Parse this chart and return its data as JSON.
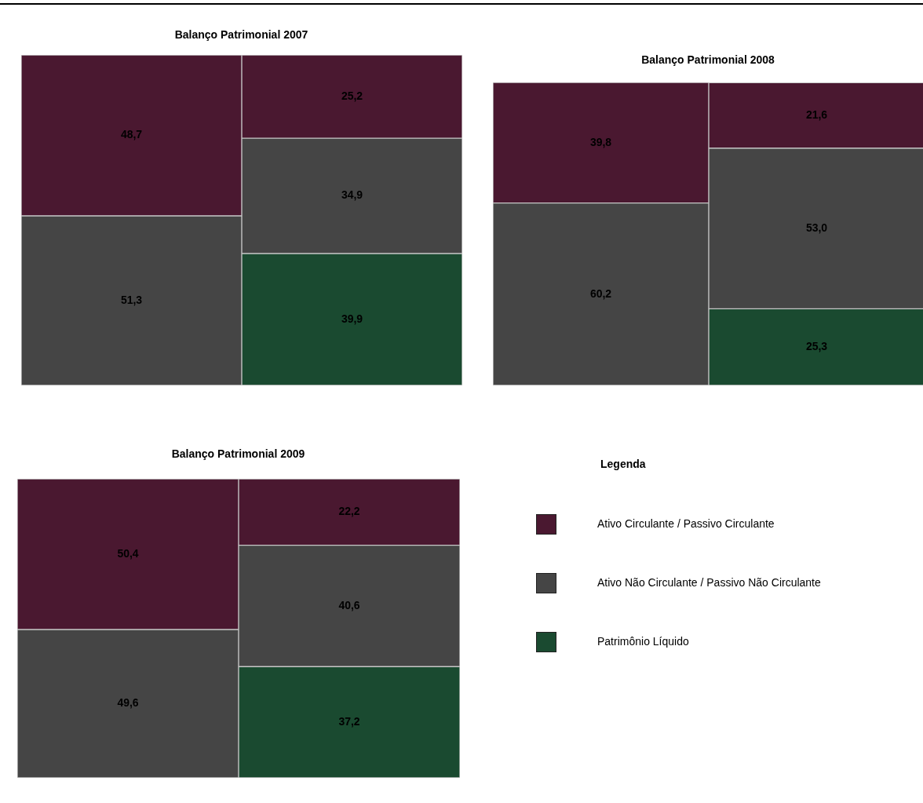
{
  "chart_data": [
    {
      "type": "bar",
      "title": "Balanço Patrimonial 2007",
      "categories": [
        null,
        null
      ],
      "stacked": true,
      "tick_labels": false,
      "legend": false,
      "series": [
        {
          "color": "#1a4a30",
          "values": [
            null,
            39.9
          ],
          "value_labels": [
            null,
            "39,9"
          ]
        },
        {
          "color": "#454545",
          "values": [
            51.3,
            34.9
          ],
          "value_labels": [
            "51,3",
            "34,9"
          ]
        },
        {
          "color": "#4a1830",
          "values": [
            48.7,
            25.2
          ],
          "value_labels": [
            "48,7",
            "25,2"
          ]
        }
      ]
    },
    {
      "type": "bar",
      "title": "Balanço Patrimonial 2008",
      "categories": [
        null,
        null
      ],
      "stacked": true,
      "tick_labels": false,
      "legend": false,
      "series": [
        {
          "color": "#1a4a30",
          "values": [
            null,
            25.3
          ],
          "value_labels": [
            null,
            "25,3"
          ]
        },
        {
          "color": "#454545",
          "values": [
            60.2,
            53.0
          ],
          "value_labels": [
            "60,2",
            "53,0"
          ]
        },
        {
          "color": "#4a1830",
          "values": [
            39.8,
            21.6
          ],
          "value_labels": [
            "39,8",
            "21,6"
          ]
        }
      ]
    },
    {
      "type": "bar",
      "title": "Balanço Patrimonial 2009",
      "categories": [
        null,
        null
      ],
      "stacked": true,
      "tick_labels": false,
      "legend": "right",
      "legend_title": "Legenda",
      "series": [
        {
          "name": "Patrimônio Líquido",
          "color": "#1a4a30",
          "values": [
            null,
            37.2
          ],
          "value_labels": [
            null,
            "37,2"
          ]
        },
        {
          "name": "Ativo Não Circulante / Passivo Não Circulante",
          "color": "#454545",
          "values": [
            49.6,
            40.6
          ],
          "value_labels": [
            "49,6",
            "40,6"
          ]
        },
        {
          "name": "Ativo Circulante / Passivo Circulante",
          "color": "#4a1830",
          "values": [
            50.4,
            22.2
          ],
          "value_labels": [
            "50,4",
            "22,2"
          ]
        }
      ]
    }
  ]
}
